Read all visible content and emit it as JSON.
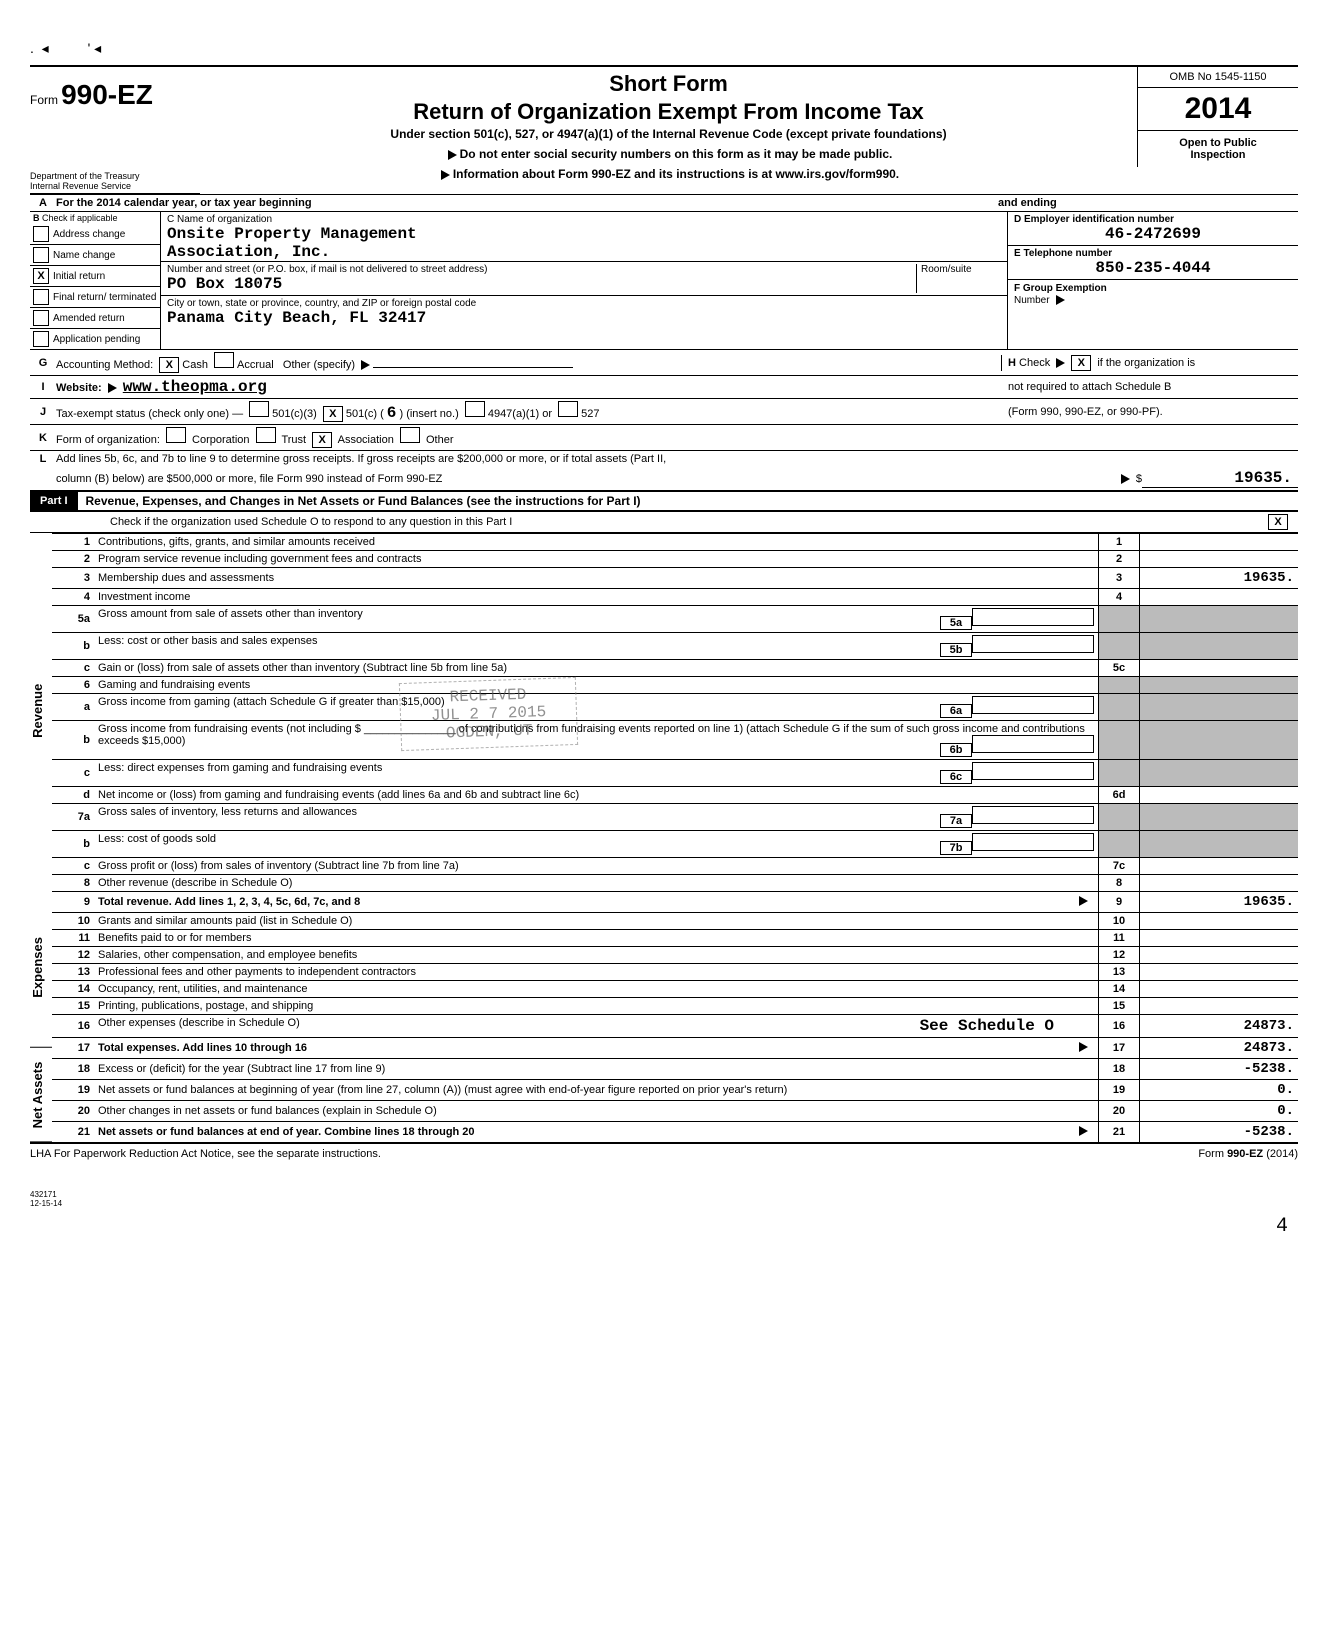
{
  "form": {
    "prefix": "Form",
    "number": "990-EZ",
    "short": "Short Form",
    "title": "Return of Organization Exempt From Income Tax",
    "subtitle": "Under section 501(c), 527, or 4947(a)(1) of the Internal Revenue Code (except private foundations)",
    "arrow1": "Do not enter social security numbers on this form as it may be made public.",
    "arrow2": "Information about Form 990-EZ and its instructions is at www.irs.gov/form990.",
    "dept1": "Department of the Treasury",
    "dept2": "Internal Revenue Service",
    "omb": "OMB No  1545-1150",
    "year": "2014",
    "open1": "Open to Public",
    "open2": "Inspection"
  },
  "rowA": {
    "left": "For the 2014 calendar year, or tax year beginning",
    "right": "and ending"
  },
  "B": {
    "header": "Check if applicable",
    "opts": [
      "Address change",
      "Name change",
      "Initial return",
      "Final return/ terminated",
      "Amended return",
      "Application pending"
    ],
    "checked_idx": 2
  },
  "C": {
    "label": "C Name of organization",
    "name1": "Onsite Property Management",
    "name2": "Association, Inc.",
    "street_lbl": "Number and street (or P.O. box, if mail is not delivered to street address)",
    "room_lbl": "Room/suite",
    "street": "PO Box 18075",
    "city_lbl": "City or town, state or province, country, and ZIP or foreign postal code",
    "city": "Panama City Beach, FL  32417"
  },
  "D": {
    "label": "D Employer identification number",
    "val": "46-2472699"
  },
  "E": {
    "label": "E  Telephone number",
    "val": "850-235-4044"
  },
  "F": {
    "label": "F  Group Exemption",
    "label2": "Number"
  },
  "G": {
    "text": "Accounting Method:",
    "cash": "Cash",
    "accrual": "Accrual",
    "other": "Other (specify)"
  },
  "H": {
    "text_a": "Check",
    "text_b": "if the organization is",
    "text2": "not required to attach Schedule B",
    "text3": "(Form 990, 990-EZ, or 990-PF)."
  },
  "I": {
    "label": "Website:",
    "val": "www.theopma.org"
  },
  "J": {
    "label": "Tax-exempt status (check only one)  —",
    "a": "501(c)(3)",
    "b": "501(c) (",
    "b_num": "6",
    "b_tail": ")           (insert no.)",
    "c": "4947(a)(1) or",
    "d": "527"
  },
  "K": {
    "label": "Form of organization:",
    "opts": [
      "Corporation",
      "Trust",
      "Association",
      "Other"
    ],
    "checked_idx": 2
  },
  "L": {
    "text": "Add lines 5b, 6c, and 7b to line 9 to determine gross receipts. If gross receipts are $200,000 or more, or if total assets (Part II,",
    "text2": "column (B) below) are $500,000 or more, file Form 990 instead of Form 990-EZ",
    "amt": "19635."
  },
  "part1": {
    "tab": "Part I",
    "title": "Revenue, Expenses, and Changes in Net Assets or Fund Balances (see the instructions for Part I)",
    "check_line": "Check if the organization used Schedule O to respond to any question in this Part I"
  },
  "side": {
    "rev": "Revenue",
    "exp": "Expenses",
    "na": "Net Assets"
  },
  "rows": [
    {
      "n": "1",
      "t": "Contributions, gifts, grants, and similar amounts received",
      "r": "1",
      "v": ""
    },
    {
      "n": "2",
      "t": "Program service revenue including government fees and contracts",
      "r": "2",
      "v": ""
    },
    {
      "n": "3",
      "t": "Membership dues and assessments",
      "r": "3",
      "v": "19635."
    },
    {
      "n": "4",
      "t": "Investment income",
      "r": "4",
      "v": ""
    },
    {
      "n": "5a",
      "t": "Gross amount from sale of assets other than inventory",
      "inner_r": "5a"
    },
    {
      "n": "b",
      "t": "Less: cost or other basis and sales expenses",
      "inner_r": "5b"
    },
    {
      "n": "c",
      "t": "Gain or (loss) from sale of assets other than inventory (Subtract line 5b from line 5a)",
      "r": "5c",
      "v": ""
    },
    {
      "n": "6",
      "t": "Gaming and fundraising events"
    },
    {
      "n": "a",
      "t": "Gross income from gaming (attach Schedule G if greater than $15,000)",
      "inner_r": "6a"
    },
    {
      "n": "b",
      "t": "Gross income from fundraising events (not including $ _______________ of contributions from fundraising events reported on line 1) (attach Schedule G if the sum of such gross income and contributions exceeds $15,000)",
      "inner_r": "6b"
    },
    {
      "n": "c",
      "t": "Less: direct expenses from gaming and fundraising events",
      "inner_r": "6c"
    },
    {
      "n": "d",
      "t": "Net income or (loss) from gaming and fundraising events (add lines 6a and 6b and subtract line 6c)",
      "r": "6d",
      "v": ""
    },
    {
      "n": "7a",
      "t": "Gross sales of inventory, less returns and allowances",
      "inner_r": "7a"
    },
    {
      "n": "b",
      "t": "Less: cost of goods sold",
      "inner_r": "7b"
    },
    {
      "n": "c",
      "t": "Gross profit or (loss) from sales of inventory (Subtract line 7b from line 7a)",
      "r": "7c",
      "v": ""
    },
    {
      "n": "8",
      "t": "Other revenue (describe in Schedule O)",
      "r": "8",
      "v": ""
    },
    {
      "n": "9",
      "t": "Total revenue. Add lines 1, 2, 3, 4, 5c, 6d, 7c, and 8",
      "r": "9",
      "v": "19635.",
      "arrow": true,
      "bold": true
    },
    {
      "n": "10",
      "t": "Grants and similar amounts paid (list in Schedule O)",
      "r": "10",
      "v": ""
    },
    {
      "n": "11",
      "t": "Benefits paid to or for members",
      "r": "11",
      "v": ""
    },
    {
      "n": "12",
      "t": "Salaries, other compensation, and employee benefits",
      "r": "12",
      "v": ""
    },
    {
      "n": "13",
      "t": "Professional fees and other payments to independent contractors",
      "r": "13",
      "v": ""
    },
    {
      "n": "14",
      "t": "Occupancy, rent, utilities, and maintenance",
      "r": "14",
      "v": ""
    },
    {
      "n": "15",
      "t": "Printing, publications, postage, and shipping",
      "r": "15",
      "v": ""
    },
    {
      "n": "16",
      "t": "Other expenses (describe in Schedule O)",
      "extra": "See Schedule O",
      "r": "16",
      "v": "24873."
    },
    {
      "n": "17",
      "t": "Total expenses. Add lines 10 through 16",
      "r": "17",
      "v": "24873.",
      "arrow": true,
      "bold": true
    },
    {
      "n": "18",
      "t": "Excess or (deficit) for the year (Subtract line 17 from line 9)",
      "r": "18",
      "v": "-5238."
    },
    {
      "n": "19",
      "t": "Net assets or fund balances at beginning of year (from line 27, column (A)) (must agree with end-of-year figure reported on prior year's return)",
      "r": "19",
      "v": "0."
    },
    {
      "n": "20",
      "t": "Other changes in net assets or fund balances (explain in Schedule O)",
      "r": "20",
      "v": "0."
    },
    {
      "n": "21",
      "t": "Net assets or fund balances at end of year. Combine lines 18 through 20",
      "r": "21",
      "v": "-5238.",
      "arrow": true,
      "bold": true
    }
  ],
  "footer": {
    "lha": "LHA  For Paperwork Reduction Act Notice, see the separate instructions.",
    "form": "Form 990-EZ (2014)",
    "code": "432171",
    "date": "12-15-14"
  },
  "stamp": {
    "l1": "RECEIVED",
    "l2": "JUL 2 7 2015",
    "l3": "OGDEN, UT"
  },
  "page_num": "4"
}
